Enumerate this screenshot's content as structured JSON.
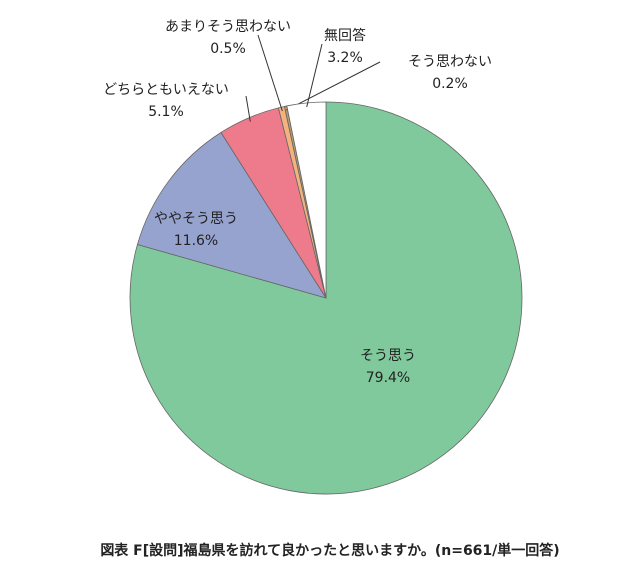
{
  "chart_data": {
    "type": "pie",
    "categories": [
      "そう思う",
      "ややそう思う",
      "どちらともいえない",
      "あまりそう思わない",
      "そう思わない",
      "無回答"
    ],
    "values": [
      79.4,
      11.6,
      5.1,
      0.5,
      0.2,
      3.2
    ],
    "value_labels": [
      "79.4%",
      "11.6%",
      "5.1%",
      "0.5%",
      "0.2%",
      "3.2%"
    ],
    "colors": [
      "#80c99c",
      "#97a3cf",
      "#ee7b8b",
      "#f3b27e",
      "#b89a6a",
      "#ffffff"
    ],
    "caption": "図表 F[設問]福島県を訪れて良かったと思いますか。(n=661/単一回答)"
  }
}
